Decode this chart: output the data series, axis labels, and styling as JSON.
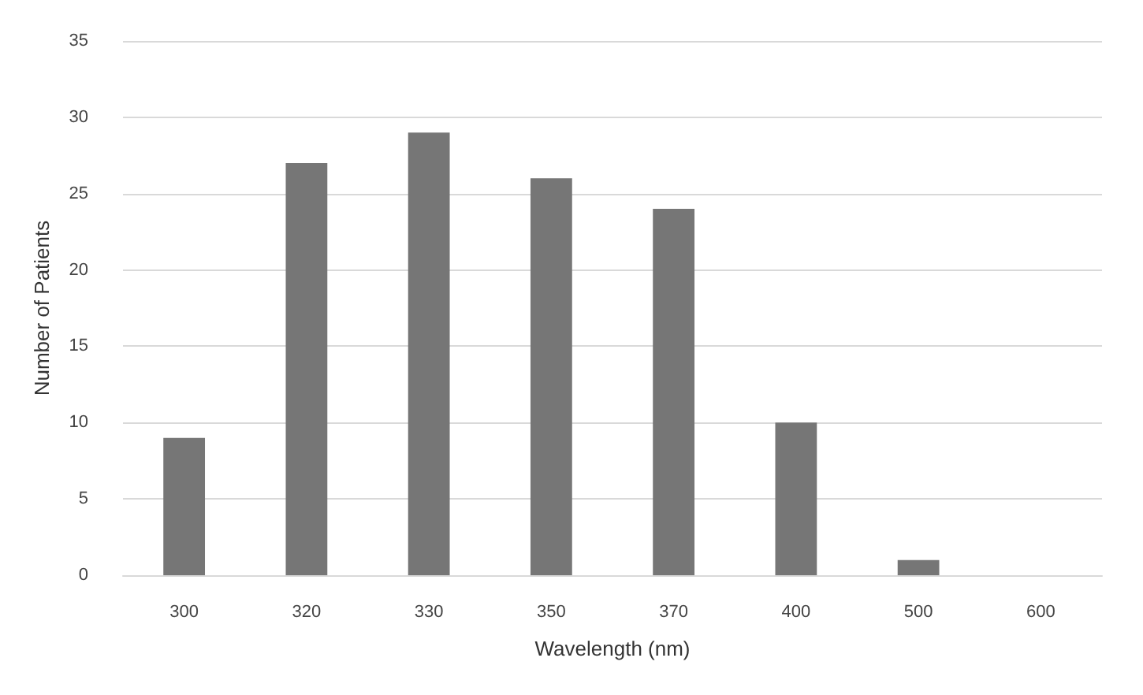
{
  "chart_data": {
    "type": "bar",
    "xlabel": "Wavelength (nm)",
    "ylabel": "Number of Patients",
    "categories": [
      "300",
      "320",
      "330",
      "350",
      "370",
      "400",
      "500",
      "600"
    ],
    "values": [
      9,
      27,
      29,
      26,
      24,
      10,
      1,
      0
    ],
    "color": "#767676",
    "ylim": [
      0,
      35
    ],
    "yticks": [
      0,
      5,
      10,
      15,
      20,
      25,
      30,
      35
    ],
    "grid": "y"
  }
}
